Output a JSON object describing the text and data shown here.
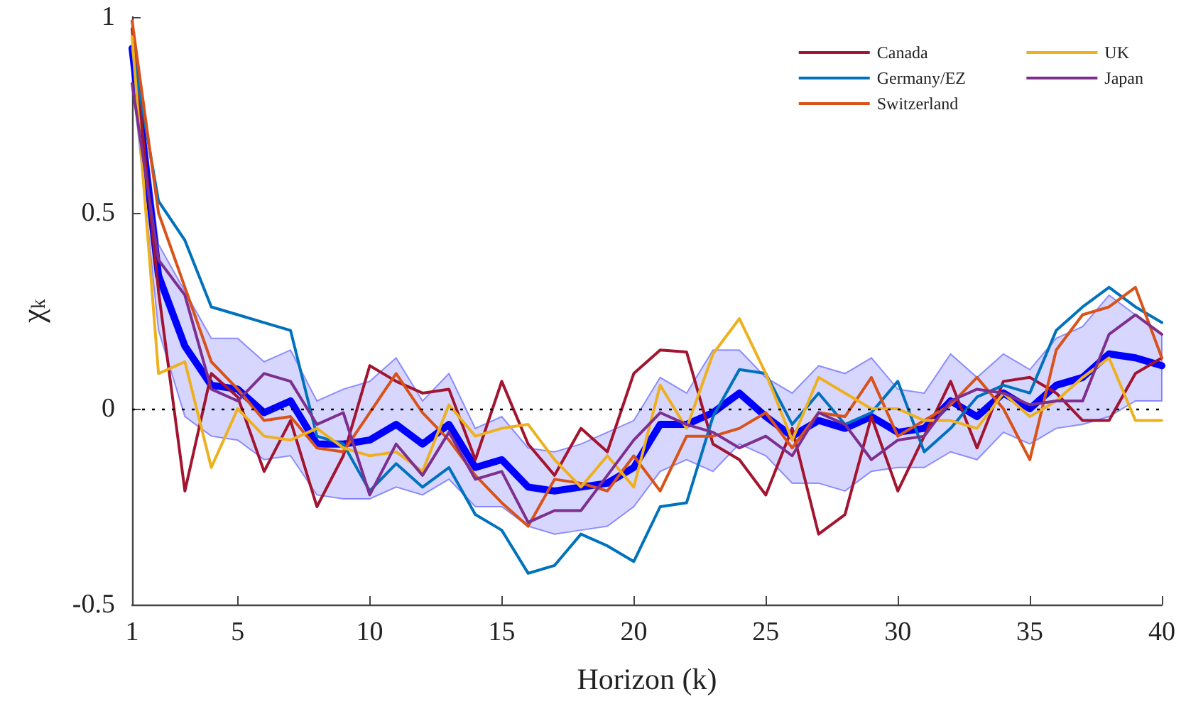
{
  "chart_data": {
    "type": "line",
    "xlabel": "Horizon (k)",
    "ylabel": "χ$_{k}$",
    "x": [
      1,
      2,
      3,
      4,
      5,
      6,
      7,
      8,
      9,
      10,
      11,
      12,
      13,
      14,
      15,
      16,
      17,
      18,
      19,
      20,
      21,
      22,
      23,
      24,
      25,
      26,
      27,
      28,
      29,
      30,
      31,
      32,
      33,
      34,
      35,
      36,
      37,
      38,
      39,
      40
    ],
    "series": [
      {
        "color": "#0000ff",
        "values": [
          0.92,
          0.34,
          0.16,
          0.06,
          0.05,
          -0.01,
          0.02,
          -0.09,
          -0.09,
          -0.08,
          -0.04,
          -0.09,
          -0.04,
          -0.15,
          -0.13,
          -0.2,
          -0.21,
          -0.2,
          -0.19,
          -0.15,
          -0.04,
          -0.04,
          -0.01,
          0.04,
          -0.02,
          -0.07,
          -0.03,
          -0.05,
          -0.02,
          -0.06,
          -0.05,
          0.02,
          -0.02,
          0.04,
          0.0,
          0.06,
          0.08,
          0.14,
          0.13,
          0.11
        ],
        "lower": [
          0.85,
          0.2,
          -0.02,
          -0.07,
          -0.08,
          -0.13,
          -0.12,
          -0.22,
          -0.23,
          -0.23,
          -0.2,
          -0.22,
          -0.18,
          -0.25,
          -0.25,
          -0.3,
          -0.32,
          -0.31,
          -0.3,
          -0.25,
          -0.16,
          -0.13,
          -0.16,
          -0.09,
          -0.12,
          -0.19,
          -0.19,
          -0.21,
          -0.16,
          -0.15,
          -0.15,
          -0.11,
          -0.13,
          -0.06,
          -0.09,
          -0.05,
          -0.04,
          -0.02,
          0.02,
          0.02
        ],
        "upper": [
          0.97,
          0.42,
          0.3,
          0.18,
          0.18,
          0.12,
          0.15,
          0.02,
          0.05,
          0.07,
          0.13,
          0.02,
          0.09,
          -0.05,
          -0.02,
          -0.1,
          -0.11,
          -0.09,
          -0.06,
          -0.03,
          0.08,
          0.04,
          0.15,
          0.15,
          0.08,
          0.04,
          0.11,
          0.09,
          0.13,
          0.05,
          0.04,
          0.14,
          0.08,
          0.14,
          0.1,
          0.18,
          0.21,
          0.29,
          0.24,
          0.19
        ]
      },
      {
        "name": "Canada",
        "color": "#a2142f",
        "values": [
          0.97,
          0.3,
          -0.21,
          0.09,
          0.03,
          -0.16,
          -0.03,
          -0.25,
          -0.12,
          0.11,
          0.07,
          0.04,
          0.05,
          -0.13,
          0.07,
          -0.09,
          -0.17,
          -0.05,
          -0.11,
          0.09,
          0.15,
          0.145,
          -0.09,
          -0.13,
          -0.22,
          -0.05,
          -0.32,
          -0.27,
          -0.02,
          -0.21,
          -0.07,
          0.07,
          -0.1,
          0.07,
          0.08,
          0.04,
          -0.03,
          -0.03,
          0.09,
          0.13
        ]
      },
      {
        "name": "Germany/EZ",
        "color": "#0072bd",
        "values": [
          0.92,
          0.53,
          0.43,
          0.26,
          0.24,
          0.22,
          0.2,
          -0.07,
          -0.09,
          -0.21,
          -0.14,
          -0.2,
          -0.15,
          -0.27,
          -0.31,
          -0.42,
          -0.4,
          -0.32,
          -0.35,
          -0.39,
          -0.25,
          -0.24,
          -0.02,
          0.1,
          0.09,
          -0.04,
          0.04,
          -0.04,
          -0.01,
          0.07,
          -0.11,
          -0.05,
          0.03,
          0.06,
          0.04,
          0.2,
          0.26,
          0.31,
          0.26,
          0.22
        ]
      },
      {
        "name": "Switzerland",
        "color": "#d95319",
        "values": [
          0.99,
          0.5,
          0.31,
          0.12,
          0.05,
          -0.03,
          -0.02,
          -0.1,
          -0.11,
          -0.01,
          0.09,
          -0.01,
          -0.08,
          -0.17,
          -0.24,
          -0.3,
          -0.18,
          -0.19,
          -0.21,
          -0.12,
          -0.21,
          -0.07,
          -0.07,
          -0.05,
          -0.01,
          -0.1,
          -0.01,
          -0.02,
          0.08,
          -0.07,
          -0.03,
          0.01,
          0.08,
          0.0,
          -0.13,
          0.15,
          0.24,
          0.26,
          0.31,
          0.13
        ]
      },
      {
        "name": "UK",
        "color": "#edb120",
        "values": [
          0.95,
          0.09,
          0.12,
          -0.15,
          0.0,
          -0.07,
          -0.08,
          -0.05,
          -0.1,
          -0.12,
          -0.11,
          -0.16,
          0.01,
          -0.07,
          -0.05,
          -0.04,
          -0.13,
          -0.2,
          -0.12,
          -0.2,
          0.06,
          -0.05,
          0.14,
          0.23,
          0.09,
          -0.08,
          0.08,
          0.04,
          0.0,
          0.0,
          -0.03,
          -0.03,
          -0.05,
          0.04,
          -0.02,
          0.02,
          0.08,
          0.13,
          -0.03,
          -0.03
        ]
      },
      {
        "name": "Japan",
        "color": "#7e2f8e",
        "values": [
          0.83,
          0.38,
          0.29,
          0.05,
          0.02,
          0.09,
          0.07,
          -0.04,
          -0.01,
          -0.22,
          -0.09,
          -0.17,
          -0.06,
          -0.18,
          -0.16,
          -0.29,
          -0.26,
          -0.26,
          -0.17,
          -0.08,
          -0.01,
          -0.04,
          -0.06,
          -0.1,
          -0.07,
          -0.12,
          -0.01,
          -0.04,
          -0.13,
          -0.08,
          -0.07,
          0.02,
          0.05,
          0.04,
          0.01,
          0.02,
          0.02,
          0.19,
          0.24,
          0.19
        ]
      }
    ],
    "xlim": [
      1,
      40
    ],
    "xticks": [
      1,
      5,
      10,
      15,
      20,
      25,
      30,
      35,
      40
    ],
    "ylim": [
      -0.5,
      1
    ],
    "yticks": [
      -0.5,
      0,
      0.5,
      1
    ],
    "ref_lines": [
      {
        "axis": "y",
        "value": 0,
        "color": "#000000",
        "line_style": "dotted"
      }
    ],
    "legend": "top right",
    "marker": "none",
    "line_style": "solid"
  }
}
